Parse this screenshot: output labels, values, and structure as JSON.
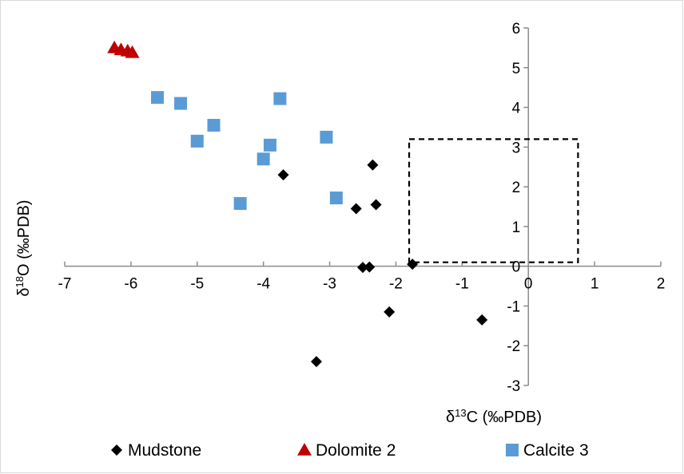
{
  "chart_data": {
    "type": "scatter",
    "xlabel": {
      "main": "δ",
      "sup": "13",
      "rest": "C (‰PDB)"
    },
    "ylabel": {
      "main": "δ",
      "sup": "18",
      "rest": "O (‰PDB)"
    },
    "xlim": [
      -7,
      2
    ],
    "ylim": [
      -3,
      6
    ],
    "x_ticks": [
      "-7",
      "-6",
      "-5",
      "-4",
      "-3",
      "-2",
      "-1",
      "0",
      "1",
      "2"
    ],
    "y_ticks": [
      "-3",
      "-2",
      "-1",
      "0",
      "1",
      "2",
      "3",
      "4",
      "5",
      "6"
    ],
    "grid": false,
    "legend_position": "bottom",
    "annotation_box": {
      "x": [
        -1.8,
        0.75
      ],
      "y": [
        0.1,
        3.2
      ],
      "style": "dashed"
    },
    "series": [
      {
        "name": "Mudstone",
        "marker": "diamond",
        "color": "#000000",
        "points": [
          [
            -3.7,
            2.3
          ],
          [
            -2.35,
            2.55
          ],
          [
            -2.6,
            1.45
          ],
          [
            -2.3,
            1.55
          ],
          [
            -2.5,
            -0.03
          ],
          [
            -2.4,
            -0.02
          ],
          [
            -1.75,
            0.05
          ],
          [
            -2.1,
            -1.15
          ],
          [
            -3.2,
            -2.4
          ],
          [
            -0.7,
            -1.35
          ]
        ]
      },
      {
        "name": "Dolomite 2",
        "marker": "triangle",
        "color": "#c00000",
        "points": [
          [
            -6.25,
            5.5
          ],
          [
            -6.15,
            5.45
          ],
          [
            -6.05,
            5.42
          ],
          [
            -5.98,
            5.38
          ]
        ]
      },
      {
        "name": "Calcite 3",
        "marker": "square",
        "color": "#5b9bd5",
        "points": [
          [
            -5.6,
            4.25
          ],
          [
            -5.25,
            4.1
          ],
          [
            -4.75,
            3.55
          ],
          [
            -5.0,
            3.15
          ],
          [
            -3.75,
            4.22
          ],
          [
            -3.9,
            3.05
          ],
          [
            -3.05,
            3.25
          ],
          [
            -4.0,
            2.7
          ],
          [
            -2.9,
            1.72
          ],
          [
            -4.35,
            1.58
          ]
        ]
      }
    ]
  }
}
